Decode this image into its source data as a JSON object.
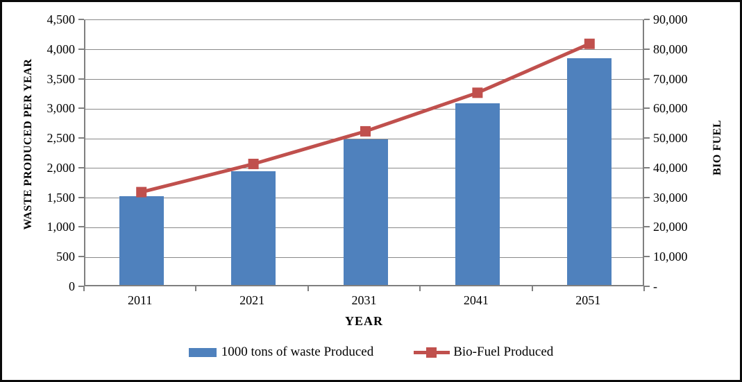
{
  "chart": {
    "background": "#FFFFFF",
    "frame_color": "#0A0A0A",
    "grid_color": "#898989",
    "axis_line_color": "#7F7F7F",
    "text_color": "#000000"
  },
  "chart_data": {
    "type": "combo-bar-line",
    "categories": [
      "2011",
      "2021",
      "2031",
      "2041",
      "2051"
    ],
    "series": [
      {
        "name": "1000 tons of waste Produced",
        "type": "bar",
        "axis": "left",
        "color": "#4F81BD",
        "values": [
          1500,
          1920,
          2450,
          3060,
          3820
        ]
      },
      {
        "name": "Bio-Fuel Produced",
        "type": "line",
        "axis": "right",
        "color": "#C0504D",
        "marker": "square",
        "values": [
          32000,
          41500,
          52500,
          65500,
          82000
        ]
      }
    ],
    "x_axis": {
      "title": "YEAR"
    },
    "left_axis": {
      "title": "WASTE PRODUCED PER YEAR",
      "min": 0,
      "max": 4500,
      "step": 500,
      "tick_labels_top_down": [
        "4,500",
        "4,000",
        "3,500",
        "3,000",
        "2,500",
        "2,000",
        "1,500",
        "1,000",
        "500",
        "0"
      ]
    },
    "right_axis": {
      "title": "BIO FUEL",
      "min": 0,
      "max": 90000,
      "step": 10000,
      "tick_labels_top_down": [
        "90,000",
        "80,000",
        "70,000",
        "60,000",
        "50,000",
        "40,000",
        "30,000",
        "20,000",
        "10,000",
        "-"
      ]
    },
    "legend_position": "bottom",
    "grid": true,
    "title": ""
  }
}
